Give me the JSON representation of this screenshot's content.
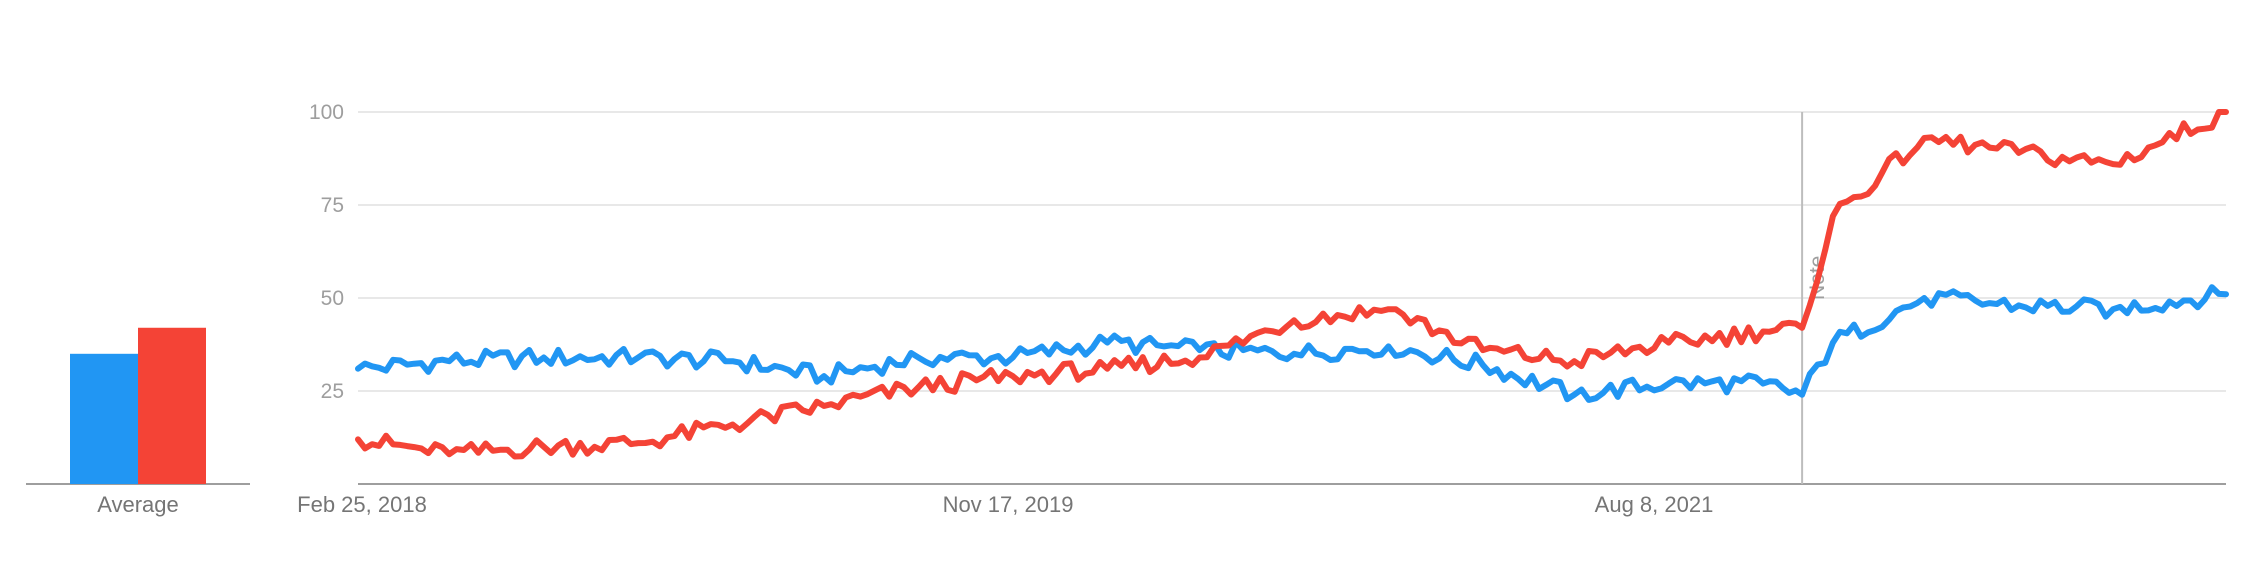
{
  "chart_data": [
    {
      "type": "bar",
      "categories": [
        "Average"
      ],
      "series": [
        {
          "values": [
            35
          ],
          "color": "#2196f3"
        },
        {
          "values": [
            42
          ],
          "color": "#f44336"
        }
      ],
      "ylim": [
        0,
        100
      ]
    },
    {
      "type": "line",
      "x_ticks": [
        "Feb 25, 2018",
        "Nov 17, 2019",
        "Aug 8, 2021"
      ],
      "y_ticks": [
        25,
        50,
        75,
        100
      ],
      "ylim": [
        0,
        100
      ],
      "grid": true,
      "annotation": {
        "label": "Note",
        "date": "2022-01-02"
      },
      "x_start": "2018-02-25",
      "x_end": "2023-02-19",
      "series": [
        {
          "color": "#2196f3",
          "points": [
            [
              "2018-02-25",
              31
            ],
            [
              "2018-05-25",
              33
            ],
            [
              "2018-08-25",
              34
            ],
            [
              "2018-11-25",
              34
            ],
            [
              "2019-02-25",
              33
            ],
            [
              "2019-05-25",
              29
            ],
            [
              "2019-08-25",
              34
            ],
            [
              "2019-11-25",
              34
            ],
            [
              "2020-02-25",
              38
            ],
            [
              "2020-05-25",
              36
            ],
            [
              "2020-08-25",
              35
            ],
            [
              "2020-11-25",
              37
            ],
            [
              "2021-02-25",
              32
            ],
            [
              "2021-05-25",
              24
            ],
            [
              "2021-08-25",
              27
            ],
            [
              "2021-11-25",
              27
            ],
            [
              "2022-01-02",
              24
            ],
            [
              "2022-02-01",
              38
            ],
            [
              "2022-05-01",
              50
            ],
            [
              "2022-08-01",
              48
            ],
            [
              "2022-11-01",
              47
            ],
            [
              "2023-02-19",
              51
            ]
          ]
        },
        {
          "color": "#f44336",
          "points": [
            [
              "2018-02-25",
              12
            ],
            [
              "2018-05-25",
              8
            ],
            [
              "2018-08-25",
              10
            ],
            [
              "2018-11-25",
              11
            ],
            [
              "2019-02-25",
              16
            ],
            [
              "2019-05-25",
              21
            ],
            [
              "2019-08-25",
              26
            ],
            [
              "2019-11-25",
              29
            ],
            [
              "2020-02-25",
              31
            ],
            [
              "2020-05-25",
              34
            ],
            [
              "2020-08-25",
              44
            ],
            [
              "2020-11-25",
              47
            ],
            [
              "2021-02-25",
              36
            ],
            [
              "2021-05-25",
              33
            ],
            [
              "2021-08-25",
              38
            ],
            [
              "2021-11-25",
              41
            ],
            [
              "2022-01-02",
              42
            ],
            [
              "2022-02-01",
              72
            ],
            [
              "2022-05-01",
              93
            ],
            [
              "2022-08-01",
              89
            ],
            [
              "2022-11-01",
              86
            ],
            [
              "2023-02-19",
              100
            ]
          ]
        }
      ]
    }
  ],
  "average_label": "Average"
}
